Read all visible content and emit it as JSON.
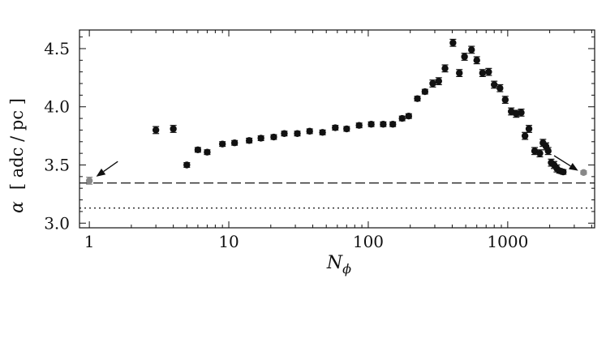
{
  "chart_data": {
    "type": "scatter",
    "xscale": "log",
    "xlim": [
      0.85,
      4200
    ],
    "ylim": [
      2.96,
      4.66
    ],
    "x_ticks": [
      1,
      10,
      100,
      1000
    ],
    "x_tick_labels": [
      "1",
      "10",
      "100",
      "1000"
    ],
    "y_ticks": [
      3.0,
      3.5,
      4.0,
      4.5
    ],
    "y_tick_labels": [
      "3.0",
      "3.5",
      "4.0",
      "4.5"
    ],
    "xlabel_main": "N",
    "xlabel_sub": "ϕ",
    "ylabel_symbol": "α",
    "ylabel_units": "[ adc / pc ]",
    "grid": false,
    "colors": {
      "points": "#111111",
      "highlight": "#888888",
      "lines": "#111111"
    },
    "reference_lines": [
      {
        "y": 3.345,
        "style": "dashed"
      },
      {
        "y": 3.13,
        "style": "dotted"
      }
    ],
    "series": [
      {
        "color": "#111111",
        "points": [
          [
            3,
            3.8,
            0.03
          ],
          [
            4,
            3.81,
            0.03
          ],
          [
            5,
            3.5,
            0.02
          ],
          [
            6,
            3.63,
            0.02
          ],
          [
            7,
            3.61,
            0.02
          ],
          [
            9,
            3.68,
            0.02
          ],
          [
            11,
            3.69,
            0.02
          ],
          [
            14,
            3.71,
            0.02
          ],
          [
            17,
            3.73,
            0.02
          ],
          [
            21,
            3.74,
            0.02
          ],
          [
            25,
            3.77,
            0.02
          ],
          [
            31,
            3.77,
            0.02
          ],
          [
            38,
            3.79,
            0.02
          ],
          [
            47,
            3.78,
            0.02
          ],
          [
            58,
            3.82,
            0.02
          ],
          [
            70,
            3.81,
            0.02
          ],
          [
            86,
            3.84,
            0.02
          ],
          [
            105,
            3.85,
            0.02
          ],
          [
            128,
            3.85,
            0.02
          ],
          [
            150,
            3.85,
            0.02
          ],
          [
            175,
            3.9,
            0.02
          ],
          [
            195,
            3.92,
            0.02
          ],
          [
            225,
            4.07,
            0.02
          ],
          [
            255,
            4.13,
            0.02
          ],
          [
            290,
            4.2,
            0.03
          ],
          [
            320,
            4.22,
            0.03
          ],
          [
            355,
            4.33,
            0.03
          ],
          [
            405,
            4.55,
            0.03
          ],
          [
            450,
            4.29,
            0.03
          ],
          [
            490,
            4.43,
            0.03
          ],
          [
            550,
            4.49,
            0.03
          ],
          [
            600,
            4.4,
            0.03
          ],
          [
            660,
            4.29,
            0.03
          ],
          [
            730,
            4.3,
            0.03
          ],
          [
            800,
            4.19,
            0.03
          ],
          [
            880,
            4.16,
            0.03
          ],
          [
            960,
            4.06,
            0.03
          ],
          [
            1060,
            3.96,
            0.03
          ],
          [
            1150,
            3.94,
            0.03
          ],
          [
            1250,
            3.95,
            0.03
          ],
          [
            1330,
            3.75,
            0.03
          ],
          [
            1420,
            3.81,
            0.03
          ],
          [
            1560,
            3.62,
            0.03
          ],
          [
            1700,
            3.6,
            0.03
          ],
          [
            1790,
            3.69,
            0.03
          ],
          [
            1880,
            3.66,
            0.03
          ],
          [
            1950,
            3.62,
            0.03
          ],
          [
            2050,
            3.52,
            0.03
          ],
          [
            2150,
            3.5,
            0.03
          ],
          [
            2250,
            3.47,
            0.03
          ],
          [
            2350,
            3.45,
            0.02
          ],
          [
            2500,
            3.44,
            0.02
          ]
        ]
      },
      {
        "color": "#888888",
        "points": [
          [
            1,
            3.365,
            0.03
          ],
          [
            3500,
            3.435,
            0.015
          ]
        ]
      }
    ],
    "annotations": [
      {
        "type": "arrow",
        "from": [
          1.6,
          3.53
        ],
        "to": [
          1.12,
          3.4
        ]
      },
      {
        "type": "arrow",
        "from": [
          2150,
          3.58
        ],
        "to": [
          3200,
          3.45
        ]
      }
    ]
  }
}
